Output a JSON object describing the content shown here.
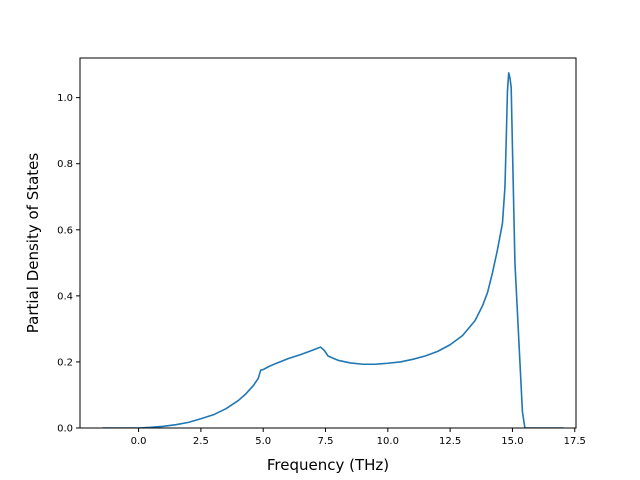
{
  "chart_data": {
    "type": "line",
    "title": "",
    "xlabel": "Frequency (THz)",
    "ylabel": "Partial Density of States",
    "xlim": [
      -2.35,
      17.55
    ],
    "ylim": [
      0,
      1.12
    ],
    "xticks": [
      0.0,
      2.5,
      5.0,
      7.5,
      10.0,
      12.5,
      15.0,
      17.5
    ],
    "xtick_labels": [
      "0.0",
      "2.5",
      "5.0",
      "7.5",
      "10.0",
      "12.5",
      "15.0",
      "17.5"
    ],
    "yticks": [
      0.0,
      0.2,
      0.4,
      0.6,
      0.8,
      1.0
    ],
    "ytick_labels": [
      "0.0",
      "0.2",
      "0.4",
      "0.6",
      "0.8",
      "1.0"
    ],
    "grid": false,
    "line_color": "#1f77b4",
    "series": [
      {
        "x": [
          -1.45,
          -1.0,
          -0.5,
          0.0,
          0.5,
          1.0,
          1.5,
          2.0,
          2.5,
          3.0,
          3.5,
          4.0,
          4.3,
          4.6,
          4.8,
          4.9,
          5.0,
          5.2,
          5.5,
          6.0,
          6.5,
          7.0,
          7.3,
          7.45,
          7.6,
          8.0,
          8.5,
          9.0,
          9.5,
          10.0,
          10.5,
          11.0,
          11.5,
          12.0,
          12.5,
          13.0,
          13.5,
          13.8,
          14.0,
          14.2,
          14.4,
          14.6,
          14.7,
          14.75,
          14.8,
          14.85,
          14.9,
          14.95,
          15.0,
          15.1,
          15.2,
          15.3,
          15.4,
          15.5,
          15.6,
          16.0,
          16.5,
          17.05
        ],
        "y": [
          0.0,
          0.0,
          0.0,
          0.0,
          0.002,
          0.005,
          0.01,
          0.017,
          0.028,
          0.04,
          0.058,
          0.083,
          0.103,
          0.128,
          0.15,
          0.175,
          0.177,
          0.185,
          0.195,
          0.21,
          0.222,
          0.236,
          0.245,
          0.235,
          0.218,
          0.205,
          0.197,
          0.193,
          0.193,
          0.196,
          0.2,
          0.208,
          0.218,
          0.232,
          0.252,
          0.28,
          0.325,
          0.37,
          0.41,
          0.47,
          0.54,
          0.62,
          0.73,
          0.87,
          1.02,
          1.075,
          1.06,
          1.03,
          0.85,
          0.5,
          0.35,
          0.2,
          0.05,
          0.0,
          0.0,
          0.0,
          0.0,
          0.0
        ]
      }
    ]
  }
}
